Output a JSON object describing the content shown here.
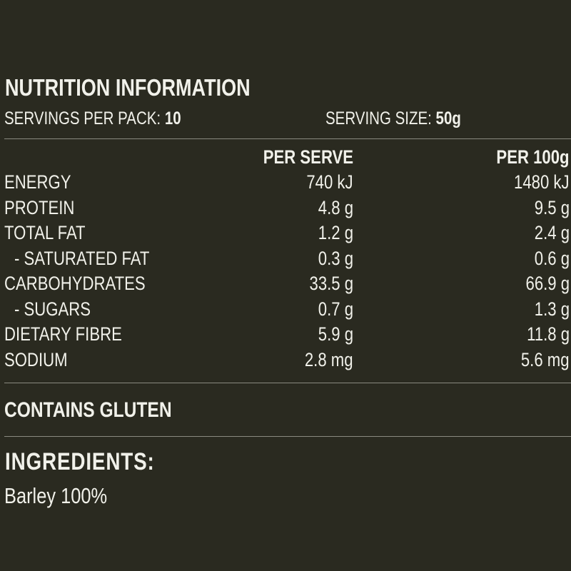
{
  "title": "NUTRITION INFORMATION",
  "servings": {
    "per_pack_label": "SERVINGS PER PACK:",
    "per_pack_value": "10",
    "size_label": "SERVING SIZE:",
    "size_value": "50g"
  },
  "table": {
    "headers": {
      "per_serve": "PER SERVE",
      "per_100g": "PER 100g"
    },
    "rows": [
      {
        "name": "ENERGY",
        "per_serve": "740 kJ",
        "per_100g": "1480 kJ",
        "indent": false
      },
      {
        "name": "PROTEIN",
        "per_serve": "4.8 g",
        "per_100g": "9.5 g",
        "indent": false
      },
      {
        "name": "TOTAL FAT",
        "per_serve": "1.2 g",
        "per_100g": "2.4 g",
        "indent": false
      },
      {
        "name": "- SATURATED FAT",
        "per_serve": "0.3 g",
        "per_100g": "0.6 g",
        "indent": true
      },
      {
        "name": "CARBOHYDRATES",
        "per_serve": "33.5 g",
        "per_100g": "66.9 g",
        "indent": false
      },
      {
        "name": "- SUGARS",
        "per_serve": "0.7 g",
        "per_100g": "1.3 g",
        "indent": true
      },
      {
        "name": "DIETARY FIBRE",
        "per_serve": "5.9 g",
        "per_100g": "11.8 g",
        "indent": false
      },
      {
        "name": "SODIUM",
        "per_serve": "2.8 mg",
        "per_100g": "5.6 mg",
        "indent": false
      }
    ]
  },
  "allergen": "CONTAINS GLUTEN",
  "ingredients": {
    "heading": "INGREDIENTS:",
    "text": "Barley 100%"
  },
  "colors": {
    "background": "#2a2a20",
    "text": "#f1f1ea",
    "rule": "#8a8a80"
  }
}
